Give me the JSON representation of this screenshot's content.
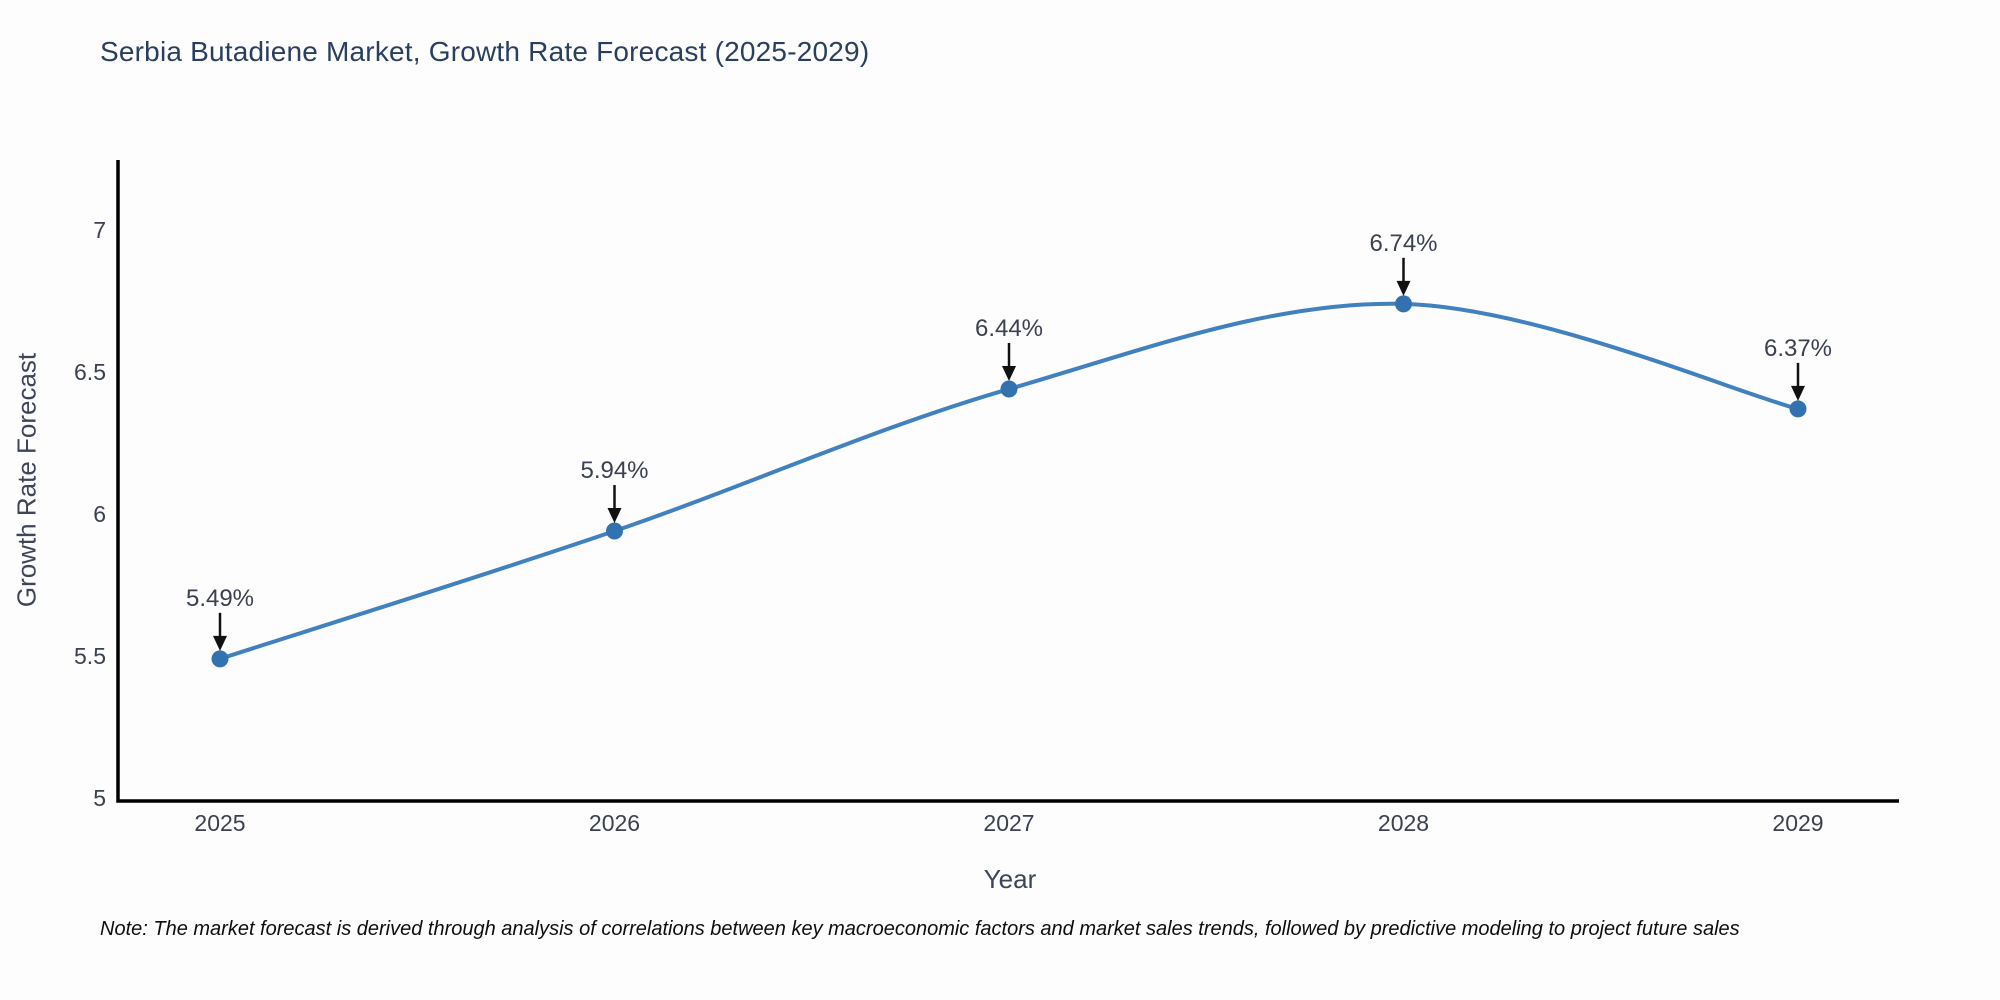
{
  "page": {
    "background": "#fdfdfd"
  },
  "chart_data": {
    "type": "line",
    "title": "Serbia Butadiene Market, Growth Rate Forecast (2025-2029)",
    "xlabel": "Year",
    "ylabel": "Growth Rate Forecast",
    "categories": [
      "2025",
      "2026",
      "2027",
      "2028",
      "2029"
    ],
    "series": [
      {
        "name": "Growth Rate Forecast",
        "values": [
          5.49,
          5.94,
          6.44,
          6.74,
          6.37
        ]
      }
    ],
    "point_labels": [
      "5.49%",
      "5.94%",
      "6.44%",
      "6.74%",
      "6.37%"
    ],
    "yticks": [
      5,
      5.5,
      6,
      6.5,
      7
    ],
    "ylim": [
      5,
      7.25
    ],
    "line_shape": "spline",
    "grid": false,
    "legend": "none",
    "colors": {
      "line": "#4181BE",
      "marker": "#3272AE",
      "axis": "#000000",
      "tick_text": "#3B4150",
      "title_text": "#2A3F5F",
      "annotation_text": "#3B4150",
      "arrow": "#111111"
    }
  },
  "note": {
    "text": "Note: The market forecast is derived through analysis of correlations between key macroeconomic factors and market sales trends, followed by predictive modeling to project future sales"
  }
}
